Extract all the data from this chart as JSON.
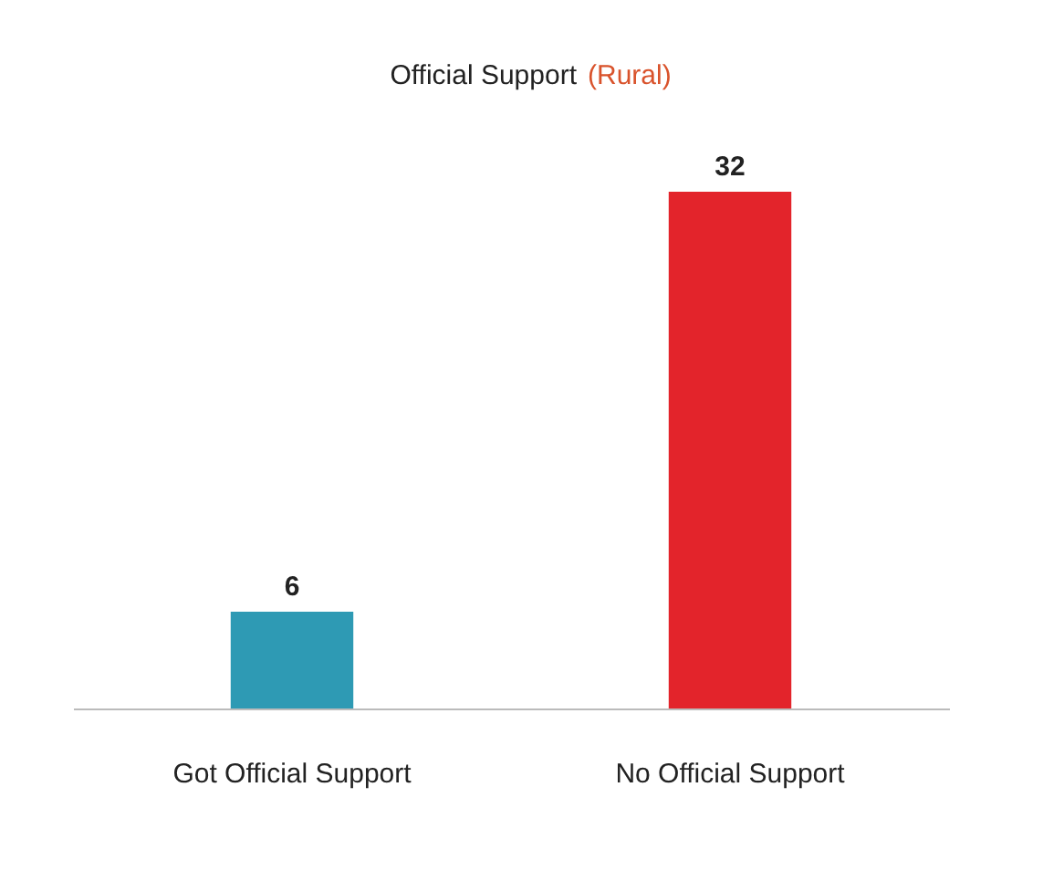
{
  "chart_data": {
    "type": "bar",
    "title": "Official Support",
    "subtitle": "(Rural)",
    "categories": [
      "Got Official Support",
      "No Official Support"
    ],
    "values": [
      6,
      32
    ],
    "colors": [
      "#2e9ab4",
      "#e3242b"
    ],
    "data_labels": true,
    "grid": false
  }
}
